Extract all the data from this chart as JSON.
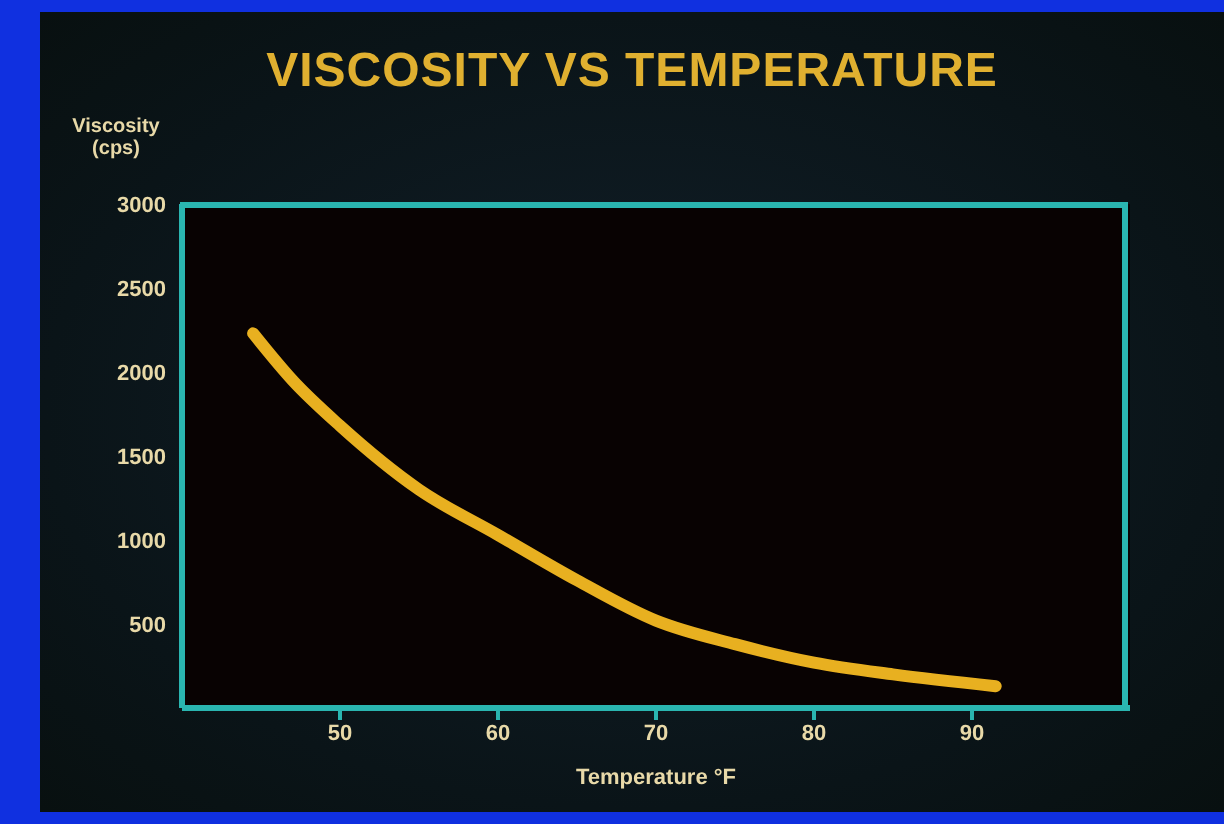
{
  "chart_data": {
    "type": "line",
    "title": "VISCOSITY VS TEMPERATURE",
    "xlabel": "Temperature °F",
    "ylabel": "Viscosity (cps)",
    "x": [
      44.5,
      47,
      50,
      55,
      60,
      65,
      70,
      75,
      80,
      85,
      91.5
    ],
    "series": [
      {
        "color": "#e8b020",
        "values": [
          2230,
          1950,
          1680,
          1300,
          1030,
          760,
          520,
          380,
          270,
          200,
          130
        ]
      }
    ],
    "xlim": [
      40,
      100
    ],
    "xticks": [
      50,
      60,
      70,
      80,
      90
    ],
    "ylim": [
      0,
      3000
    ],
    "yticks": [
      500,
      1000,
      1500,
      2000,
      2500,
      3000
    ],
    "grid": false,
    "legend": false,
    "marker": "none",
    "line_style": "solid"
  }
}
